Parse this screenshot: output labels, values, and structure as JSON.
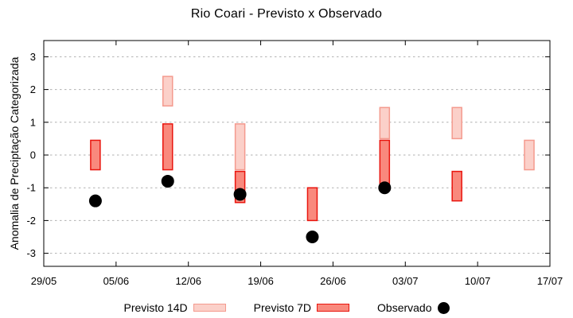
{
  "chart_data": {
    "type": "bar",
    "subtype": "forecast-interval-ranges-with-observed-points",
    "title": "Rio Coari - Previsto x Observado",
    "ylabel": "Anomalia de Preciptação Categorizada",
    "xlabel": "",
    "ylim": [
      -3.5,
      3.5
    ],
    "grid": true,
    "legend_position": "bottom-center",
    "y_ticks": [
      3,
      2,
      1,
      0,
      -1,
      -2,
      -3
    ],
    "x_ticks": [
      {
        "label": "29/05",
        "day": 0
      },
      {
        "label": "05/06",
        "day": 7
      },
      {
        "label": "12/06",
        "day": 14
      },
      {
        "label": "19/06",
        "day": 21
      },
      {
        "label": "26/06",
        "day": 28
      },
      {
        "label": "03/07",
        "day": 35
      },
      {
        "label": "10/07",
        "day": 42
      },
      {
        "label": "17/07",
        "day": 49
      }
    ],
    "legend": [
      {
        "label": "Previsto 14D",
        "swatch": "light-box"
      },
      {
        "label": "Previsto 7D",
        "swatch": "dark-box"
      },
      {
        "label": "Observado",
        "swatch": "black-dot"
      }
    ],
    "points": [
      {
        "date": "03/06",
        "day": 5,
        "previsto_14d": null,
        "previsto_7d": [
          -0.45,
          0.45
        ],
        "observado": -1.4
      },
      {
        "date": "10/06",
        "day": 12,
        "previsto_14d": [
          1.5,
          2.4
        ],
        "previsto_7d": [
          -0.45,
          0.95
        ],
        "observado": -0.8
      },
      {
        "date": "17/06",
        "day": 19,
        "previsto_14d": [
          -0.45,
          0.95
        ],
        "previsto_7d": [
          -1.45,
          -0.5
        ],
        "observado": -1.2
      },
      {
        "date": "24/06",
        "day": 26,
        "previsto_14d": null,
        "previsto_7d": [
          -2.0,
          -1.0
        ],
        "observado": -2.5
      },
      {
        "date": "01/07",
        "day": 33,
        "previsto_14d": [
          0.5,
          1.45
        ],
        "previsto_7d": [
          -0.9,
          0.45
        ],
        "observado": -1.0
      },
      {
        "date": "08/07",
        "day": 40,
        "previsto_14d": [
          0.5,
          1.45
        ],
        "previsto_7d": [
          -1.4,
          -0.5
        ],
        "observado": null
      },
      {
        "date": "15/07",
        "day": 47,
        "previsto_14d": [
          -0.45,
          0.45
        ],
        "previsto_7d": null,
        "observado": null
      }
    ],
    "colors": {
      "previsto_14d_fill": "#fbd0c9",
      "previsto_14d_border": "#f49a8e",
      "previsto_7d_fill": "#f9897d",
      "previsto_7d_border": "#e9150e",
      "observado": "#000000",
      "grid": "#b0b0b0",
      "axis": "#000000"
    }
  }
}
